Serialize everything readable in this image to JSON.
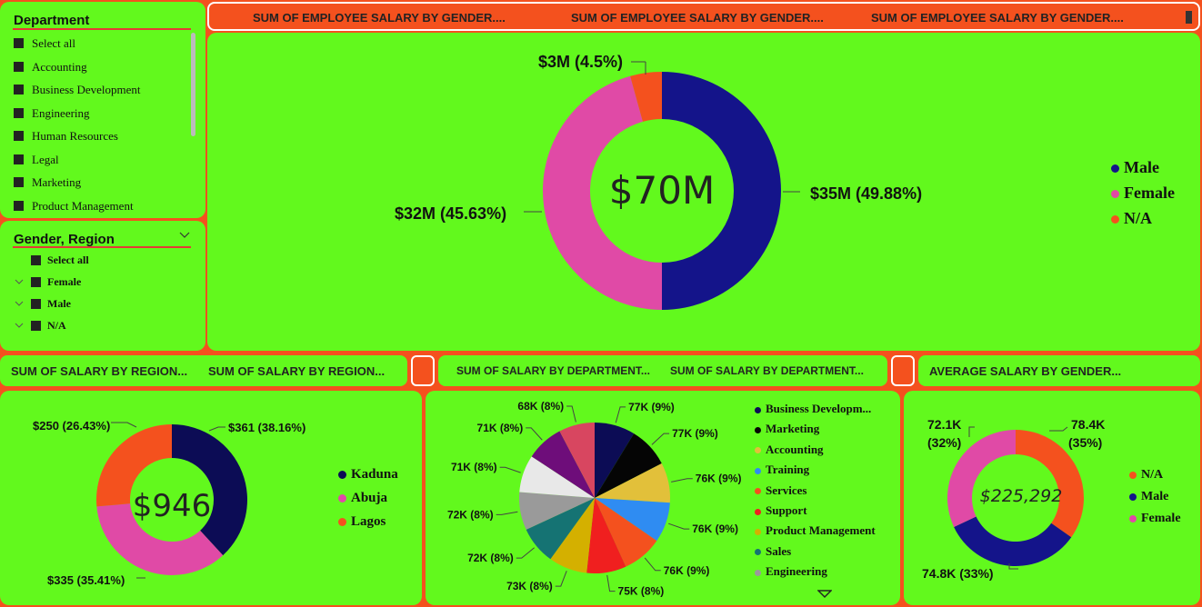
{
  "colors": {
    "green": "#62f91d",
    "orange": "#f4511e",
    "navy": "#14148a",
    "pink": "#e04aa6",
    "darknavy": "#0c0c55"
  },
  "department_slicer": {
    "title": "Department",
    "items": [
      "Select all",
      "Accounting",
      "Business Development",
      "Engineering",
      "Human Resources",
      "Legal",
      "Marketing",
      "Product Management"
    ]
  },
  "gender_region_slicer": {
    "title": "Gender, Region",
    "items": [
      "Select all",
      "Female",
      "Male",
      "N/A"
    ]
  },
  "top_header": {
    "titles": [
      "SUM OF EMPLOYEE SALARY BY GENDER....",
      "SUM OF EMPLOYEE SALARY BY GENDER....",
      "SUM OF EMPLOYEE SALARY BY GENDER...."
    ]
  },
  "region_header": {
    "titles": [
      "SUM OF SALARY BY REGION...",
      "SUM OF SALARY BY REGION..."
    ]
  },
  "dept_header": {
    "titles": [
      "SUM OF SALARY BY DEPARTMENT...",
      "SUM OF SALARY BY DEPARTMENT..."
    ]
  },
  "avg_header": {
    "title": "AVERAGE SALARY BY GENDER..."
  },
  "chart_data": [
    {
      "type": "pie",
      "subtype": "donut",
      "center_label": "$70M",
      "slices": [
        {
          "name": "Male",
          "value": 35,
          "pct": 49.88,
          "label": "$35M (49.88%)",
          "color": "#14148a"
        },
        {
          "name": "Female",
          "value": 32,
          "pct": 45.63,
          "label": "$32M (45.63%)",
          "color": "#e04aa6"
        },
        {
          "name": "N/A",
          "value": 3,
          "pct": 4.5,
          "label": "$3M (4.5%)",
          "color": "#f4511e"
        }
      ],
      "legend": [
        "Male",
        "Female",
        "N/A"
      ]
    },
    {
      "type": "pie",
      "subtype": "donut",
      "center_label": "$946",
      "slices": [
        {
          "name": "Kaduna",
          "value": 361,
          "pct": 38.16,
          "label": "$361 (38.16%)",
          "color": "#0c0c55"
        },
        {
          "name": "Abuja",
          "value": 335,
          "pct": 35.41,
          "label": "$335 (35.41%)",
          "color": "#e04aa6"
        },
        {
          "name": "Lagos",
          "value": 250,
          "pct": 26.43,
          "label": "$250 (26.43%)",
          "color": "#f4511e"
        }
      ],
      "legend": [
        "Kaduna",
        "Abuja",
        "Lagos"
      ]
    },
    {
      "type": "pie",
      "slices": [
        {
          "value": 77,
          "label": "77K (9%)",
          "color": "#0c0c55"
        },
        {
          "value": 77,
          "label": "77K (9%)",
          "color": "#050505"
        },
        {
          "value": 76,
          "label": "76K (9%)",
          "color": "#e2c03a"
        },
        {
          "value": 76,
          "label": "76K (9%)",
          "color": "#2f8cf2"
        },
        {
          "value": 76,
          "label": "76K (9%)",
          "color": "#f4511e"
        },
        {
          "value": 75,
          "label": "75K (8%)",
          "color": "#f01f1f"
        },
        {
          "value": 73,
          "label": "73K (8%)",
          "color": "#d4b000"
        },
        {
          "value": 72,
          "label": "72K (8%)",
          "color": "#157373"
        },
        {
          "value": 72,
          "label": "72K (8%)",
          "color": "#9a9a9a"
        },
        {
          "value": 71,
          "label": "71K (8%)",
          "color": "#e8e8e8"
        },
        {
          "value": 71,
          "label": "71K (8%)",
          "color": "#6e0d7a"
        },
        {
          "value": 68,
          "label": "68K (8%)",
          "color": "#d84660"
        }
      ],
      "legend": [
        {
          "name": "Business Developm...",
          "color": "#0c0c55"
        },
        {
          "name": "Marketing",
          "color": "#050505"
        },
        {
          "name": "Accounting",
          "color": "#e2c03a"
        },
        {
          "name": "Training",
          "color": "#2f8cf2"
        },
        {
          "name": "Services",
          "color": "#f4511e"
        },
        {
          "name": "Support",
          "color": "#f01f1f"
        },
        {
          "name": "Product Management",
          "color": "#d4b000"
        },
        {
          "name": "Sales",
          "color": "#157373"
        },
        {
          "name": "Engineering",
          "color": "#9a9a9a"
        }
      ]
    },
    {
      "type": "pie",
      "subtype": "donut",
      "center_label": "$225,292",
      "slices": [
        {
          "name": "N/A",
          "value": 78.4,
          "pct": 35,
          "label": "78.4K (35%)",
          "color": "#f4511e"
        },
        {
          "name": "Male",
          "value": 74.8,
          "pct": 33,
          "label": "74.8K (33%)",
          "color": "#14148a"
        },
        {
          "name": "Female",
          "value": 72.1,
          "pct": 32,
          "label": "72.1K (32%)",
          "color": "#e04aa6"
        }
      ],
      "legend": [
        "N/A",
        "Male",
        "Female"
      ]
    }
  ]
}
